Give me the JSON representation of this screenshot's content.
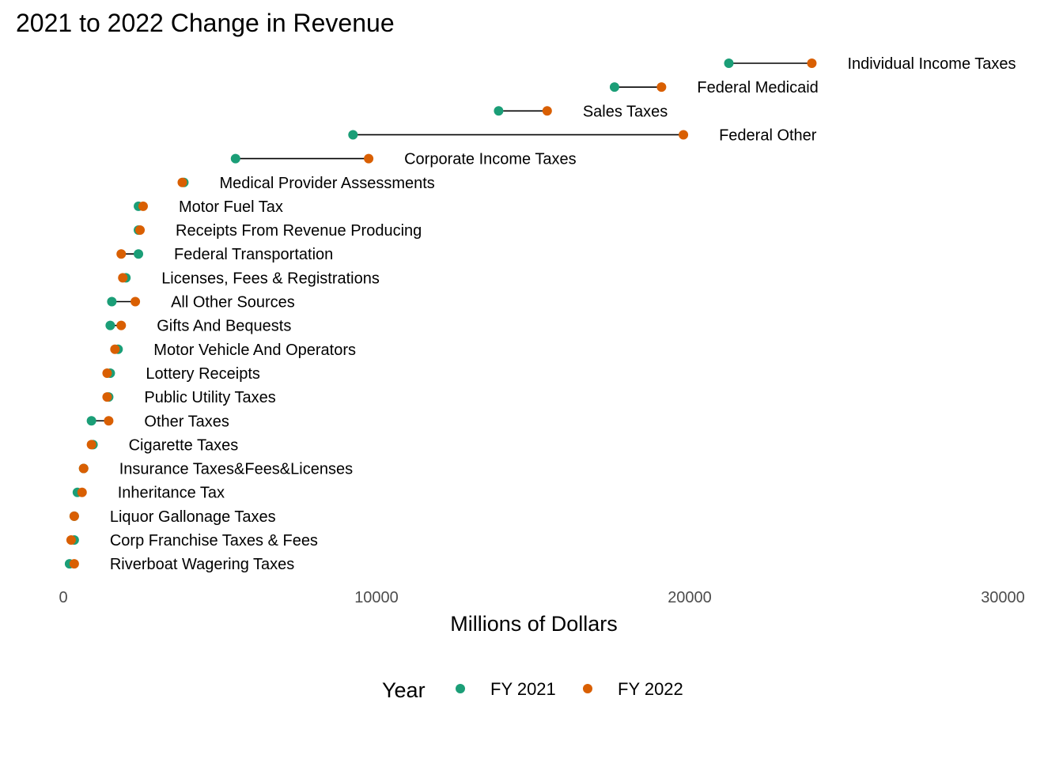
{
  "chart_data": {
    "type": "dumbbell",
    "title": "2021 to 2022 Change in Revenue",
    "xlabel": "Millions of Dollars",
    "ylabel": "",
    "xlim": [
      0,
      30000
    ],
    "x_ticks": [
      0,
      10000,
      20000,
      30000
    ],
    "x_tick_labels": [
      "0",
      "10000",
      "20000",
      "30000"
    ],
    "grid": false,
    "legend": {
      "title": "Year",
      "position": "bottom",
      "entries": [
        {
          "name": "FY 2021",
          "color": "#1b9e77"
        },
        {
          "name": "FY 2022",
          "color": "#d95f02"
        }
      ]
    },
    "series": [
      {
        "name": "FY 2021",
        "color": "#1b9e77"
      },
      {
        "name": "FY 2022",
        "color": "#d95f02"
      }
    ],
    "rows": [
      {
        "category": "Individual Income Taxes",
        "fy2021": 21250,
        "fy2022": 23900
      },
      {
        "category": "Federal Medicaid",
        "fy2021": 17600,
        "fy2022": 19100
      },
      {
        "category": "Sales Taxes",
        "fy2021": 13900,
        "fy2022": 15450
      },
      {
        "category": "Federal Other",
        "fy2021": 9250,
        "fy2022": 19800
      },
      {
        "category": "Corporate Income Taxes",
        "fy2021": 5500,
        "fy2022": 9750
      },
      {
        "category": "Medical Provider Assessments",
        "fy2021": 3850,
        "fy2022": 3800
      },
      {
        "category": "Motor Fuel Tax",
        "fy2021": 2400,
        "fy2022": 2550
      },
      {
        "category": "Receipts From Revenue Producing",
        "fy2021": 2400,
        "fy2022": 2450
      },
      {
        "category": "Federal Transportation",
        "fy2021": 2400,
        "fy2022": 1850
      },
      {
        "category": "Licenses, Fees & Registrations",
        "fy2021": 2000,
        "fy2022": 1900
      },
      {
        "category": "All Other Sources",
        "fy2021": 1550,
        "fy2022": 2300
      },
      {
        "category": "Gifts And Bequests",
        "fy2021": 1500,
        "fy2022": 1850
      },
      {
        "category": "Motor Vehicle And Operators",
        "fy2021": 1750,
        "fy2022": 1650
      },
      {
        "category": "Lottery Receipts",
        "fy2021": 1500,
        "fy2022": 1400
      },
      {
        "category": "Public Utility Taxes",
        "fy2021": 1450,
        "fy2022": 1400
      },
      {
        "category": "Other Taxes",
        "fy2021": 900,
        "fy2022": 1450
      },
      {
        "category": "Cigarette Taxes",
        "fy2021": 950,
        "fy2022": 900
      },
      {
        "category": "Insurance Taxes&Fees&Licenses",
        "fy2021": 650,
        "fy2022": 650
      },
      {
        "category": "Inheritance Tax",
        "fy2021": 450,
        "fy2022": 600
      },
      {
        "category": "Liquor Gallonage Taxes",
        "fy2021": 350,
        "fy2022": 350
      },
      {
        "category": "Corp Franchise Taxes & Fees",
        "fy2021": 350,
        "fy2022": 250
      },
      {
        "category": "Riverboat Wagering Taxes",
        "fy2021": 200,
        "fy2022": 350
      }
    ]
  }
}
